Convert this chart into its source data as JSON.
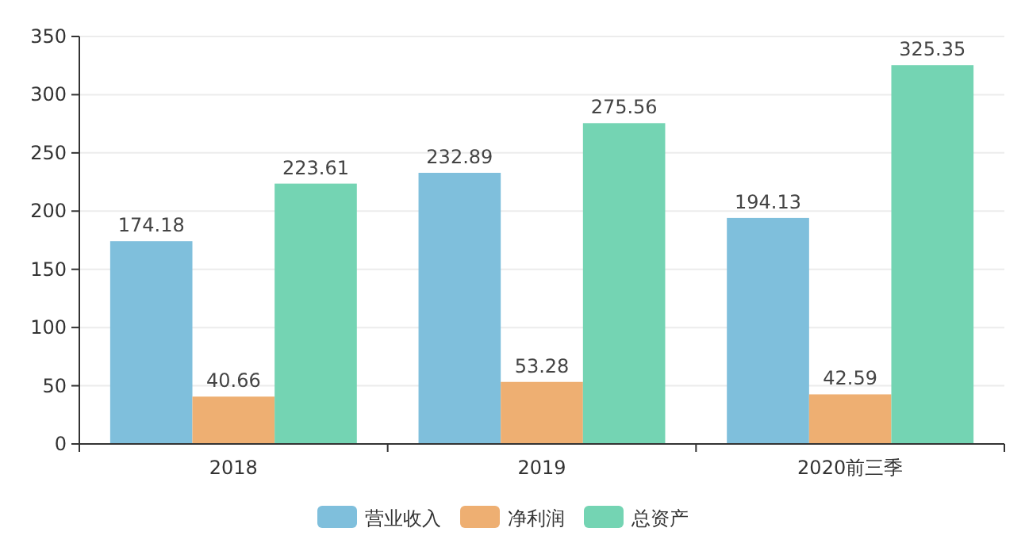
{
  "chart_data": {
    "type": "bar",
    "categories": [
      "2018",
      "2019",
      "2020前三季"
    ],
    "series": [
      {
        "name": "营业收入",
        "color": "#7fbfdc",
        "values": [
          174.18,
          232.89,
          194.13
        ]
      },
      {
        "name": "净利润",
        "color": "#eeaf72",
        "values": [
          40.66,
          53.28,
          42.59
        ]
      },
      {
        "name": "总资产",
        "color": "#74d4b3",
        "values": [
          223.61,
          275.56,
          325.35
        ]
      }
    ],
    "ylim": [
      0,
      350
    ],
    "yticks": [
      0,
      50,
      100,
      150,
      200,
      250,
      300,
      350
    ],
    "grid": "y",
    "legend": "bottom",
    "data_labels": true
  }
}
